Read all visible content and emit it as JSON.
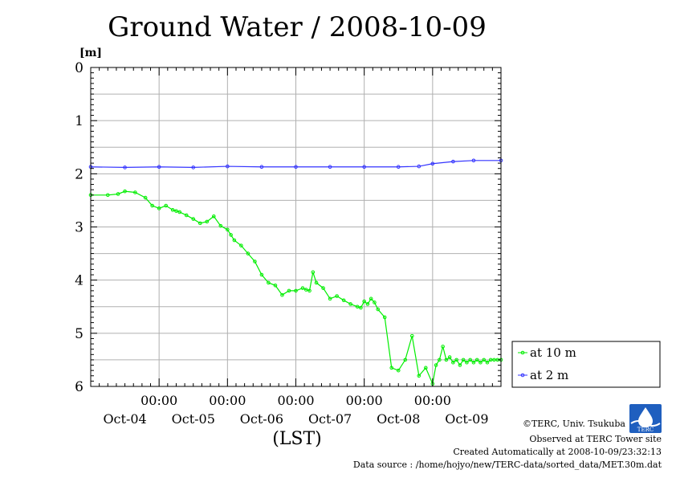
{
  "chart_data": {
    "type": "line",
    "title": "Ground Water / 2008-10-09",
    "ylabel": "[m]",
    "xlabel": "(LST)",
    "ylim": [
      0,
      6
    ],
    "y_inverted": true,
    "y_ticks": [
      "0",
      "1",
      "2",
      "3",
      "4",
      "5",
      "6"
    ],
    "x_range": [
      0,
      6
    ],
    "x_ticks": [
      {
        "pos": 1,
        "time": "00:00",
        "date": "Oct-04"
      },
      {
        "pos": 2,
        "time": "00:00",
        "date": "Oct-05"
      },
      {
        "pos": 3,
        "time": "00:00",
        "date": "Oct-06"
      },
      {
        "pos": 4,
        "time": "00:00",
        "date": "Oct-07"
      },
      {
        "pos": 5,
        "time": "00:00",
        "date": "Oct-08"
      },
      {
        "pos": 6,
        "time": "",
        "date": "Oct-09"
      }
    ],
    "grid": true,
    "legend_position": "lower-right-outside",
    "series": [
      {
        "name": "at 10 m",
        "color": "#00ee00",
        "x": [
          0,
          0.25,
          0.4,
          0.5,
          0.65,
          0.8,
          0.9,
          1.0,
          1.1,
          1.2,
          1.25,
          1.3,
          1.4,
          1.5,
          1.6,
          1.7,
          1.8,
          1.9,
          2.0,
          2.05,
          2.1,
          2.2,
          2.3,
          2.4,
          2.5,
          2.6,
          2.7,
          2.8,
          2.9,
          3.0,
          3.1,
          3.15,
          3.2,
          3.25,
          3.3,
          3.4,
          3.5,
          3.6,
          3.7,
          3.8,
          3.9,
          3.95,
          4.0,
          4.05,
          4.1,
          4.15,
          4.2,
          4.3,
          4.4,
          4.5,
          4.6,
          4.7,
          4.8,
          4.9,
          5.0,
          5.05,
          5.1,
          5.15,
          5.2,
          5.25,
          5.3,
          5.35,
          5.4,
          5.45,
          5.5,
          5.55,
          5.6,
          5.65,
          5.7,
          5.75,
          5.8,
          5.85,
          5.9,
          5.95,
          6.0
        ],
        "values": [
          2.4,
          2.4,
          2.38,
          2.33,
          2.35,
          2.45,
          2.6,
          2.65,
          2.6,
          2.68,
          2.7,
          2.72,
          2.78,
          2.85,
          2.93,
          2.9,
          2.8,
          2.98,
          3.05,
          3.15,
          3.25,
          3.35,
          3.5,
          3.65,
          3.9,
          4.05,
          4.1,
          4.28,
          4.2,
          4.2,
          4.15,
          4.18,
          4.2,
          3.85,
          4.05,
          4.15,
          4.35,
          4.3,
          4.38,
          4.45,
          4.5,
          4.52,
          4.4,
          4.45,
          4.35,
          4.42,
          4.55,
          4.7,
          5.65,
          5.7,
          5.5,
          5.05,
          5.8,
          5.65,
          5.95,
          5.6,
          5.5,
          5.25,
          5.5,
          5.45,
          5.55,
          5.5,
          5.6,
          5.5,
          5.55,
          5.5,
          5.55,
          5.5,
          5.55,
          5.5,
          5.55,
          5.5,
          5.5,
          5.5,
          5.5
        ]
      },
      {
        "name": "at 2 m",
        "color": "#3333ff",
        "x": [
          0,
          0.5,
          1.0,
          1.5,
          2.0,
          2.5,
          3.0,
          3.5,
          4.0,
          4.5,
          4.8,
          5.0,
          5.3,
          5.6,
          6.0
        ],
        "values": [
          1.87,
          1.88,
          1.87,
          1.88,
          1.86,
          1.87,
          1.87,
          1.87,
          1.87,
          1.87,
          1.86,
          1.81,
          1.77,
          1.75,
          1.75
        ]
      }
    ]
  },
  "footer": {
    "copyright": "©TERC, Univ. Tsukuba",
    "observed": "Observed at TERC Tower site",
    "created": "Created Automatically at 2008-10-09/23:32:13",
    "source": "Data source : /home/hojyo/new/TERC-data/sorted_data/MET.30m.dat",
    "logo_text": "TERC"
  }
}
